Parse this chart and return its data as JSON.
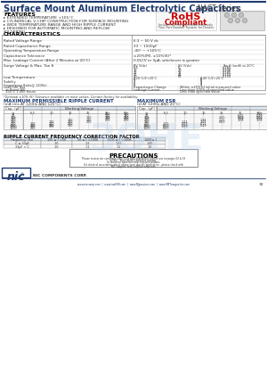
{
  "title": "Surface Mount Aluminum Electrolytic Capacitors",
  "series": "NACT Series",
  "features": [
    "EXTENDED TEMPERATURE +105°C",
    "CYLINDRICAL V-CHIP CONSTRUCTION FOR SURFACE MOUNTING",
    "WIDE TEMPERATURE RANGE AND HIGH RIPPLE CURRENT",
    "DESIGNED FOR AUTOMATIC MOUNTING AND REFLOW",
    "  SOLDERING"
  ],
  "rohs_sub": "Includes all homogeneous materials",
  "rohs_note": "*See Part Number System for Details",
  "characteristics_title": "CHARACTERISTICS",
  "char_note": "*Optional ±10% (K) Tolerance available on most values. Contact factory for availability.",
  "ripple_title": "MAXIMUM PERMISSIBLE RIPPLE CURRENT",
  "ripple_subtitle": "(mA rms AT 120Hz AND 125°C)",
  "ripple_v_headers": [
    "6.3",
    "10",
    "16",
    "25",
    "35",
    "50"
  ],
  "ripple_data": [
    [
      "33",
      "-",
      "-",
      "-",
      "-",
      "210",
      "190"
    ],
    [
      "47",
      "-",
      "-",
      "-",
      "-",
      "310",
      "190"
    ],
    [
      "100",
      "-",
      "-",
      "-",
      "110",
      "190",
      "210"
    ],
    [
      "150",
      "-",
      "-",
      "-",
      "-",
      "260",
      "220"
    ],
    [
      "220",
      "-",
      "-",
      "120",
      "200",
      "260",
      "220"
    ],
    [
      "330",
      "-",
      "120",
      "210",
      "270",
      "-",
      "-"
    ],
    [
      "470",
      "160",
      "210",
      "260",
      "-",
      "-",
      "-"
    ],
    [
      "680",
      "210",
      "300",
      "300",
      "-",
      "-",
      "-"
    ],
    [
      "1000",
      "300",
      "300",
      "-",
      "-",
      "-",
      "-"
    ],
    [
      "1500",
      "260",
      "-",
      "-",
      "-",
      "-",
      "-"
    ]
  ],
  "esr_title": "MAXIMUM ESR",
  "esr_subtitle": "(Ω AT 120Hz AND 20°C)",
  "esr_v_headers": [
    "6.3",
    "10",
    "16",
    "25",
    "35",
    "50"
  ],
  "esr_data": [
    [
      "33",
      "-",
      "-",
      "-",
      "-",
      "-",
      "7.59"
    ],
    [
      "47",
      "-",
      "-",
      "-",
      "-",
      "6.05",
      "4.99"
    ],
    [
      "100",
      "-",
      "-",
      "-",
      "2.65",
      "2.02",
      "2.02"
    ],
    [
      "150",
      "-",
      "-",
      "-",
      "-",
      "1.59",
      "1.59"
    ],
    [
      "220",
      "-",
      "-",
      "1.94",
      "1.21",
      "1.08",
      "1.08"
    ],
    [
      "330",
      "-",
      "1.21",
      "1.01",
      "0.83",
      "-",
      "-"
    ],
    [
      "470",
      "1.05",
      "0.89",
      "0.71",
      "-",
      "-",
      "-"
    ],
    [
      "680",
      "0.73",
      "0.59",
      "0.49",
      "-",
      "-",
      "-"
    ],
    [
      "1000",
      "0.50",
      "0.49",
      "-",
      "-",
      "-",
      "-"
    ],
    [
      "1500",
      "0.83",
      "-",
      "-",
      "-",
      "-",
      "-"
    ]
  ],
  "freq_title": "RIPPLE CURRENT FREQUENCY CORRECTION FACTOR",
  "freq_headers": [
    "Frequency (Hz)",
    "100 ≤ f <50",
    "50 ≤ f <100K",
    "100K ≤ f <100K",
    "100K≤ f"
  ],
  "freq_data": [
    [
      "C ≤ 33μF",
      "1.0",
      "1.2",
      "1.25",
      "1.45"
    ],
    [
      "33μF < C",
      "1.0",
      "1.1",
      "1.2",
      "1.8"
    ]
  ],
  "footer_urls": "www.niccomp.com  |  www.lowESR.com  |  www.NJpassives.com  |  www.SMTmagnetics.com",
  "page_num": "33",
  "bg_color": "#ffffff",
  "header_blue": "#1e3a6e",
  "light_blue_bg": "#dce6f1"
}
